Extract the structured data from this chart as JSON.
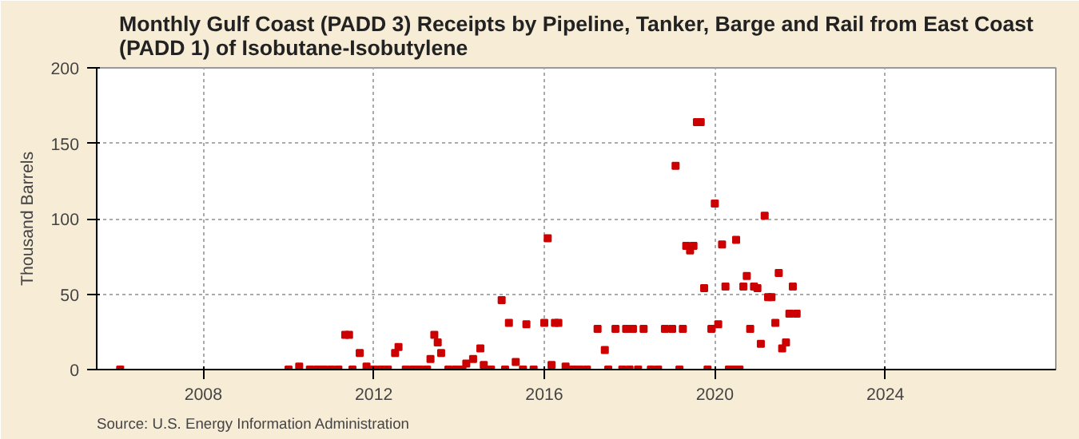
{
  "chart_data": {
    "type": "scatter",
    "title": "Monthly Gulf Coast (PADD 3) Receipts by Pipeline, Tanker, Barge and Rail from East Coast (PADD 1) of Isobutane-Isobutylene",
    "ylabel": "Thousand Barrels",
    "annotations": [
      "Source: U.S. Energy Information Administration"
    ],
    "x": [
      2006.05,
      2010.0,
      2010.25,
      2010.5,
      2010.67,
      2010.83,
      2011.0,
      2011.17,
      2011.33,
      2011.42,
      2011.5,
      2011.67,
      2011.83,
      2012.0,
      2012.17,
      2012.33,
      2012.5,
      2012.58,
      2012.75,
      2012.92,
      2013.08,
      2013.25,
      2013.33,
      2013.42,
      2013.5,
      2013.58,
      2013.75,
      2013.92,
      2014.08,
      2014.17,
      2014.33,
      2014.5,
      2014.58,
      2014.75,
      2015.0,
      2015.08,
      2015.17,
      2015.33,
      2015.5,
      2015.58,
      2015.75,
      2016.0,
      2016.08,
      2016.17,
      2016.25,
      2016.33,
      2016.5,
      2016.67,
      2016.83,
      2017.0,
      2017.25,
      2017.42,
      2017.5,
      2017.67,
      2017.83,
      2017.92,
      2018.0,
      2018.08,
      2018.2,
      2018.33,
      2018.5,
      2018.67,
      2018.83,
      2019.0,
      2019.08,
      2019.17,
      2019.25,
      2019.33,
      2019.42,
      2019.5,
      2019.58,
      2019.67,
      2019.75,
      2019.83,
      2019.92,
      2020.0,
      2020.08,
      2020.17,
      2020.25,
      2020.33,
      2020.42,
      2020.5,
      2020.58,
      2020.67,
      2020.75,
      2020.83,
      2020.92,
      2021.0,
      2021.08,
      2021.17,
      2021.25,
      2021.33,
      2021.42,
      2021.5,
      2021.58,
      2021.67,
      2021.75,
      2021.83,
      2021.92
    ],
    "series": [
      {
        "color": "#cc0000",
        "values": [
          0,
          0,
          2,
          0,
          0,
          0,
          0,
          0,
          23,
          23,
          0,
          11,
          2,
          0,
          0,
          0,
          11,
          15,
          0,
          0,
          0,
          0,
          7,
          23,
          18,
          11,
          0,
          0,
          0,
          4,
          7,
          14,
          3,
          0,
          46,
          0,
          31,
          5,
          0,
          30,
          0,
          31,
          87,
          3,
          31,
          31,
          2,
          0,
          0,
          0,
          27,
          13,
          0,
          27,
          0,
          27,
          0,
          27,
          0,
          27,
          0,
          0,
          27,
          27,
          135,
          0,
          27,
          82,
          79,
          82,
          164,
          164,
          54,
          0,
          27,
          110,
          30,
          83,
          55,
          0,
          0,
          86,
          0,
          55,
          62,
          27,
          55,
          54,
          17,
          102,
          48,
          48,
          31,
          64,
          14,
          18,
          37,
          55,
          37
        ]
      }
    ],
    "xlim": [
      2005.5,
      2028
    ],
    "xticks": [
      2008,
      2012,
      2016,
      2020,
      2024
    ],
    "ylim": [
      0,
      200
    ],
    "yticks": [
      0,
      50,
      100,
      150,
      200
    ],
    "grid": true,
    "marker": "square"
  }
}
